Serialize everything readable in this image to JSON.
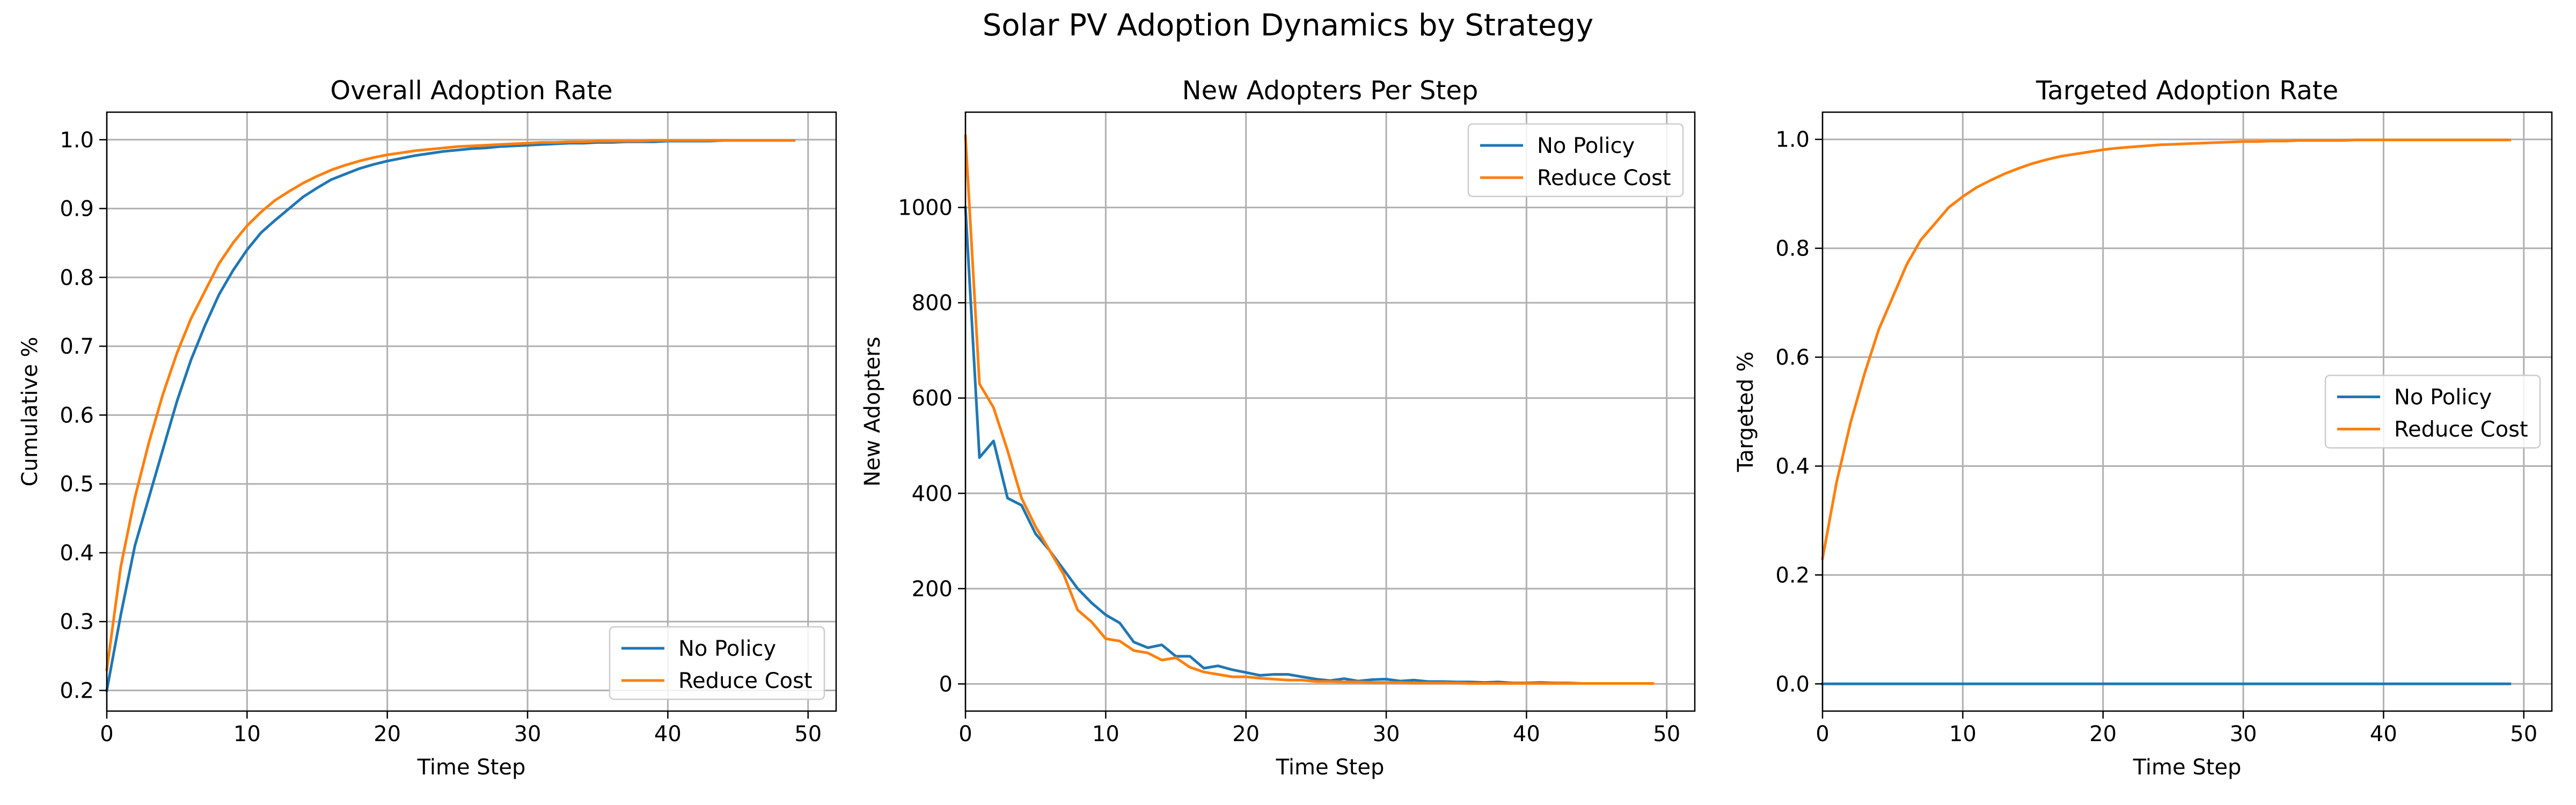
{
  "figure_title": "Solar PV Adoption Dynamics by Strategy",
  "colors": {
    "no_policy": "#1f77b4",
    "reduce_cost": "#ff7f0e",
    "grid": "#b0b0b0"
  },
  "chart_data": [
    {
      "type": "line",
      "title": "Overall Adoption Rate",
      "xlabel": "Time Step",
      "ylabel": "Cumulative %",
      "xlim": [
        0,
        52
      ],
      "ylim": [
        0.17,
        1.04
      ],
      "xticks": [
        0,
        10,
        20,
        30,
        40,
        50
      ],
      "yticks": [
        0.2,
        0.3,
        0.4,
        0.5,
        0.6,
        0.7,
        0.8,
        0.9,
        1.0
      ],
      "ytick_labels": [
        "0.2",
        "0.3",
        "0.4",
        "0.5",
        "0.6",
        "0.7",
        "0.8",
        "0.9",
        "1.0"
      ],
      "grid": true,
      "legend_position": "lower-right",
      "x": [
        0,
        1,
        2,
        3,
        4,
        5,
        6,
        7,
        8,
        9,
        10,
        11,
        12,
        13,
        14,
        15,
        16,
        17,
        18,
        19,
        20,
        21,
        22,
        23,
        24,
        25,
        26,
        27,
        28,
        29,
        30,
        31,
        32,
        33,
        34,
        35,
        36,
        37,
        38,
        39,
        40,
        41,
        42,
        43,
        44,
        45,
        46,
        47,
        48,
        49
      ],
      "series": [
        {
          "name": "No Policy",
          "color": "#1f77b4",
          "values": [
            0.2,
            0.31,
            0.41,
            0.48,
            0.55,
            0.62,
            0.68,
            0.73,
            0.775,
            0.81,
            0.84,
            0.865,
            0.883,
            0.9,
            0.917,
            0.93,
            0.942,
            0.95,
            0.958,
            0.964,
            0.969,
            0.973,
            0.977,
            0.98,
            0.983,
            0.985,
            0.987,
            0.988,
            0.99,
            0.991,
            0.992,
            0.993,
            0.994,
            0.995,
            0.995,
            0.996,
            0.996,
            0.997,
            0.997,
            0.997,
            0.998,
            0.998,
            0.998,
            0.998,
            0.999,
            0.999,
            0.999,
            0.999,
            0.999,
            0.999
          ]
        },
        {
          "name": "Reduce Cost",
          "color": "#ff7f0e",
          "values": [
            0.23,
            0.38,
            0.48,
            0.56,
            0.63,
            0.69,
            0.74,
            0.78,
            0.82,
            0.85,
            0.875,
            0.895,
            0.912,
            0.925,
            0.937,
            0.947,
            0.956,
            0.963,
            0.969,
            0.974,
            0.978,
            0.981,
            0.984,
            0.986,
            0.988,
            0.99,
            0.991,
            0.992,
            0.993,
            0.994,
            0.995,
            0.996,
            0.996,
            0.997,
            0.997,
            0.998,
            0.998,
            0.998,
            0.998,
            0.999,
            0.999,
            0.999,
            0.999,
            0.999,
            0.999,
            0.999,
            0.999,
            0.999,
            0.999,
            0.999
          ]
        }
      ]
    },
    {
      "type": "line",
      "title": "New Adopters Per Step",
      "xlabel": "Time Step",
      "ylabel": "New Adopters",
      "xlim": [
        0,
        52
      ],
      "ylim": [
        -57,
        1200
      ],
      "xticks": [
        0,
        10,
        20,
        30,
        40,
        50
      ],
      "yticks": [
        0,
        200,
        400,
        600,
        800,
        1000
      ],
      "ytick_labels": [
        "0",
        "200",
        "400",
        "600",
        "800",
        "1000"
      ],
      "grid": true,
      "legend_position": "upper-right",
      "x": [
        0,
        1,
        2,
        3,
        4,
        5,
        6,
        7,
        8,
        9,
        10,
        11,
        12,
        13,
        14,
        15,
        16,
        17,
        18,
        19,
        20,
        21,
        22,
        23,
        24,
        25,
        26,
        27,
        28,
        29,
        30,
        31,
        32,
        33,
        34,
        35,
        36,
        37,
        38,
        39,
        40,
        41,
        42,
        43,
        44,
        45,
        46,
        47,
        48,
        49
      ],
      "series": [
        {
          "name": "No Policy",
          "color": "#1f77b4",
          "values": [
            1000,
            475,
            510,
            390,
            375,
            315,
            280,
            240,
            200,
            170,
            145,
            128,
            88,
            76,
            82,
            58,
            58,
            33,
            38,
            30,
            24,
            18,
            20,
            20,
            15,
            10,
            7,
            11,
            6,
            9,
            10,
            6,
            8,
            5,
            5,
            4,
            4,
            3,
            4,
            2,
            2,
            3,
            2,
            2,
            1,
            1,
            1,
            1,
            1,
            1
          ]
        },
        {
          "name": "Reduce Cost",
          "color": "#ff7f0e",
          "values": [
            1150,
            630,
            580,
            490,
            390,
            330,
            280,
            230,
            155,
            130,
            95,
            90,
            70,
            65,
            50,
            55,
            35,
            25,
            20,
            15,
            15,
            12,
            10,
            8,
            8,
            5,
            5,
            4,
            4,
            3,
            3,
            3,
            2,
            2,
            2,
            2,
            1,
            1,
            1,
            1,
            1,
            1,
            1,
            1,
            1,
            1,
            1,
            1,
            1,
            1
          ]
        }
      ]
    },
    {
      "type": "line",
      "title": "Targeted Adoption Rate",
      "xlabel": "Time Step",
      "ylabel": "Targeted %",
      "xlim": [
        0,
        52
      ],
      "ylim": [
        -0.05,
        1.05
      ],
      "xticks": [
        0,
        10,
        20,
        30,
        40,
        50
      ],
      "yticks": [
        0,
        0.2,
        0.4,
        0.6,
        0.8,
        1.0
      ],
      "ytick_labels": [
        "0.0",
        "0.2",
        "0.4",
        "0.6",
        "0.8",
        "1.0"
      ],
      "grid": true,
      "legend_position": "center-right",
      "x": [
        0,
        1,
        2,
        3,
        4,
        5,
        6,
        7,
        8,
        9,
        10,
        11,
        12,
        13,
        14,
        15,
        16,
        17,
        18,
        19,
        20,
        21,
        22,
        23,
        24,
        25,
        26,
        27,
        28,
        29,
        30,
        31,
        32,
        33,
        34,
        35,
        36,
        37,
        38,
        39,
        40,
        41,
        42,
        43,
        44,
        45,
        46,
        47,
        48,
        49
      ],
      "series": [
        {
          "name": "No Policy",
          "color": "#1f77b4",
          "values": [
            0,
            0,
            0,
            0,
            0,
            0,
            0,
            0,
            0,
            0,
            0,
            0,
            0,
            0,
            0,
            0,
            0,
            0,
            0,
            0,
            0,
            0,
            0,
            0,
            0,
            0,
            0,
            0,
            0,
            0,
            0,
            0,
            0,
            0,
            0,
            0,
            0,
            0,
            0,
            0,
            0,
            0,
            0,
            0,
            0,
            0,
            0,
            0,
            0,
            0
          ]
        },
        {
          "name": "Reduce Cost",
          "color": "#ff7f0e",
          "values": [
            0.23,
            0.37,
            0.48,
            0.57,
            0.65,
            0.71,
            0.77,
            0.815,
            0.845,
            0.875,
            0.895,
            0.912,
            0.925,
            0.937,
            0.947,
            0.956,
            0.963,
            0.969,
            0.973,
            0.977,
            0.981,
            0.984,
            0.986,
            0.988,
            0.99,
            0.991,
            0.992,
            0.993,
            0.994,
            0.995,
            0.996,
            0.996,
            0.997,
            0.997,
            0.998,
            0.998,
            0.998,
            0.998,
            0.999,
            0.999,
            0.999,
            0.999,
            0.999,
            0.999,
            0.999,
            0.999,
            0.999,
            0.999,
            0.999,
            0.999
          ]
        }
      ]
    }
  ]
}
